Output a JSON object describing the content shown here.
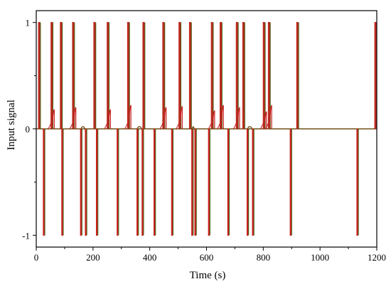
{
  "chart_data": {
    "type": "line",
    "title": "",
    "xlabel": "Time (s)",
    "ylabel": "Input signal",
    "xlim": [
      0,
      1200
    ],
    "ylim": [
      -1,
      1
    ],
    "x_ticks": [
      0,
      200,
      400,
      600,
      800,
      1000,
      1200
    ],
    "y_ticks": [
      -1,
      0,
      1
    ],
    "grid": false,
    "legend": "none",
    "colors": {
      "positive_pulse": "#cc1f1f",
      "negative_pulse": "#cc1f1f",
      "shadow": "#3d6b16",
      "baseline": "#6b4b12"
    },
    "series": [
      {
        "pulse_width": 4,
        "positive_pulses": [
          {
            "x": 8,
            "residual": 0
          },
          {
            "x": 52,
            "residual": 0.18
          },
          {
            "x": 85,
            "residual": 0
          },
          {
            "x": 128,
            "residual": 0.2
          },
          {
            "x": 203,
            "residual": 0
          },
          {
            "x": 250,
            "residual": 0.18
          },
          {
            "x": 322,
            "residual": 0.22
          },
          {
            "x": 376,
            "residual": 0
          },
          {
            "x": 446,
            "residual": 0.2
          },
          {
            "x": 503,
            "residual": 0.21
          },
          {
            "x": 540,
            "residual": 0
          },
          {
            "x": 617,
            "residual": 0.17
          },
          {
            "x": 648,
            "residual": 0.22
          },
          {
            "x": 705,
            "residual": 0.2
          },
          {
            "x": 728,
            "residual": 0
          },
          {
            "x": 800,
            "residual": 0.16
          },
          {
            "x": 818,
            "residual": 0.22
          },
          {
            "x": 918,
            "residual": 0
          },
          {
            "x": 1193,
            "residual": 0
          }
        ],
        "negative_pulses": [
          {
            "x": 25
          },
          {
            "x": 90
          },
          {
            "x": 156
          },
          {
            "x": 173
          },
          {
            "x": 212
          },
          {
            "x": 285
          },
          {
            "x": 355
          },
          {
            "x": 373
          },
          {
            "x": 415
          },
          {
            "x": 477
          },
          {
            "x": 548
          },
          {
            "x": 559
          },
          {
            "x": 607
          },
          {
            "x": 675
          },
          {
            "x": 743
          },
          {
            "x": 762
          },
          {
            "x": 895
          },
          {
            "x": 1130
          }
        ],
        "plateaus": [
          {
            "x": [
              157,
              172
            ],
            "y": 0.02
          },
          {
            "x": [
              355,
              372
            ],
            "y": 0.02
          },
          {
            "x": [
              548,
              558
            ],
            "y": 0.02
          },
          {
            "x": [
              744,
              761
            ],
            "y": 0.02
          }
        ]
      }
    ]
  }
}
